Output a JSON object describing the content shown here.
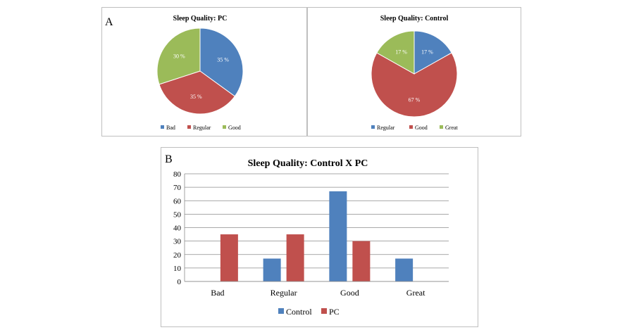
{
  "panel_labels": {
    "a": "A",
    "b": "B"
  },
  "colors": {
    "blue": "#4F81BD",
    "red": "#C0504D",
    "green": "#9BBB59"
  },
  "chart_data": [
    {
      "type": "pie",
      "title": "Sleep Quality: PC",
      "slices": [
        {
          "name": "Bad",
          "value": 35,
          "label": "35 %",
          "color": "#4F81BD"
        },
        {
          "name": "Regular",
          "value": 35,
          "label": "35 %",
          "color": "#C0504D"
        },
        {
          "name": "Good",
          "value": 30,
          "label": "30 %",
          "color": "#9BBB59"
        }
      ],
      "legend": [
        "Bad",
        "Regular",
        "Good"
      ],
      "legend_position": "bottom"
    },
    {
      "type": "pie",
      "title": "Sleep Quality: Control",
      "slices": [
        {
          "name": "Regular",
          "value": 17,
          "label": "17 %",
          "color": "#4F81BD"
        },
        {
          "name": "Good",
          "value": 67,
          "label": "67 %",
          "color": "#C0504D"
        },
        {
          "name": "Great",
          "value": 17,
          "label": "17 %",
          "color": "#9BBB59"
        }
      ],
      "legend": [
        "Regular",
        "Good",
        "Great"
      ],
      "legend_position": "bottom"
    },
    {
      "type": "bar",
      "title": "Sleep Quality: Control X PC",
      "categories": [
        "Bad",
        "Regular",
        "Good",
        "Great"
      ],
      "series": [
        {
          "name": "Control",
          "values": [
            0,
            17,
            67,
            17
          ],
          "color": "#4F81BD"
        },
        {
          "name": "PC",
          "values": [
            35,
            35,
            30,
            0
          ],
          "color": "#C0504D"
        }
      ],
      "ylim": [
        0,
        80
      ],
      "yticks": [
        0,
        10,
        20,
        30,
        40,
        50,
        60,
        70,
        80
      ],
      "grid": true,
      "legend_position": "bottom",
      "xlabel": "",
      "ylabel": ""
    }
  ]
}
